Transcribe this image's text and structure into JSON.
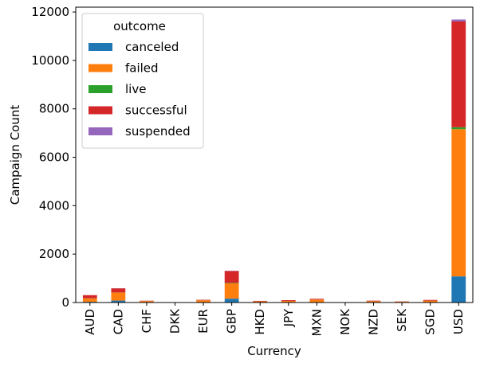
{
  "chart_data": {
    "type": "bar",
    "stacked": true,
    "xlabel": "Currency",
    "ylabel": "Campaign Count",
    "ylim": [
      0,
      12200
    ],
    "yticks": [
      0,
      2000,
      4000,
      6000,
      8000,
      10000,
      12000
    ],
    "categories": [
      "AUD",
      "CAD",
      "CHF",
      "DKK",
      "EUR",
      "GBP",
      "HKD",
      "JPY",
      "MXN",
      "NOK",
      "NZD",
      "SEK",
      "SGD",
      "USD"
    ],
    "legend": {
      "title": "outcome",
      "placement": "top-left"
    },
    "series": [
      {
        "name": "canceled",
        "color": "#1f77b4",
        "values": [
          30,
          80,
          8,
          2,
          10,
          160,
          5,
          5,
          10,
          2,
          5,
          3,
          5,
          1080
        ]
      },
      {
        "name": "failed",
        "color": "#ff7f0e",
        "values": [
          140,
          330,
          50,
          5,
          80,
          630,
          40,
          60,
          110,
          5,
          50,
          30,
          70,
          6080
        ]
      },
      {
        "name": "live",
        "color": "#2ca02c",
        "values": [
          5,
          5,
          1,
          0,
          2,
          20,
          2,
          2,
          3,
          0,
          2,
          1,
          2,
          80
        ]
      },
      {
        "name": "successful",
        "color": "#d62728",
        "values": [
          130,
          170,
          15,
          3,
          20,
          490,
          20,
          30,
          30,
          3,
          20,
          10,
          30,
          4370
        ]
      },
      {
        "name": "suspended",
        "color": "#9467bd",
        "values": [
          2,
          5,
          1,
          0,
          1,
          10,
          1,
          1,
          2,
          0,
          1,
          1,
          1,
          80
        ]
      }
    ]
  }
}
